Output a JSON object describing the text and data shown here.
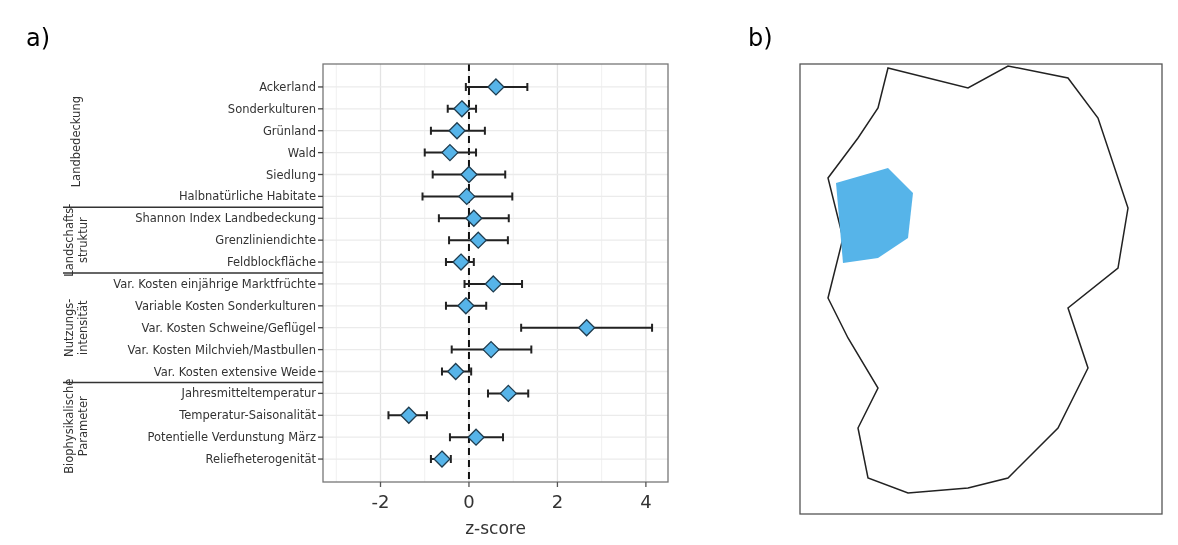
{
  "chart_data": {
    "type": "scatter",
    "orientation": "horizontal",
    "xlabel": "z-score",
    "categories": [
      "Ackerland",
      "Sonderkulturen",
      "Grünland",
      "Wald",
      "Siedlung",
      "Halbnatürliche Habitate",
      "Shannon Index Landbedeckung",
      "Grenzliniendichte",
      "Feldblockfläche",
      "Var. Kosten einjährige Marktfrüchte",
      "Variable Kosten Sonderkulturen",
      "Var. Kosten Schweine/Geflügel",
      "Var. Kosten Milchvieh/Mastbullen",
      "Var. Kosten extensive Weide",
      "Jahresmitteltemperatur",
      "Temperatur-Saisonalität",
      "Potentielle Verdunstung März",
      "Reliefheterogenität"
    ],
    "series": [
      {
        "color": "#56b4e9",
        "values": [
          0.61,
          -0.16,
          -0.27,
          -0.43,
          0.0,
          -0.05,
          0.11,
          0.21,
          -0.18,
          0.55,
          -0.07,
          2.66,
          0.5,
          -0.3,
          0.89,
          -1.36,
          0.16,
          -0.61
        ],
        "errors": [
          [
            -0.07,
            1.32
          ],
          [
            -0.48,
            0.16
          ],
          [
            -0.86,
            0.36
          ],
          [
            -1.0,
            0.16
          ],
          [
            -0.82,
            0.82
          ],
          [
            -1.05,
            0.98
          ],
          [
            -0.68,
            0.9
          ],
          [
            -0.45,
            0.88
          ],
          [
            -0.52,
            0.11
          ],
          [
            -0.1,
            1.2
          ],
          [
            -0.52,
            0.39
          ],
          [
            1.18,
            4.14
          ],
          [
            -0.39,
            1.41
          ],
          [
            -0.61,
            0.05
          ],
          [
            0.43,
            1.34
          ],
          [
            -1.82,
            -0.95
          ],
          [
            -0.43,
            0.77
          ],
          [
            -0.86,
            -0.41
          ]
        ]
      }
    ],
    "xlim": [
      -3.3,
      4.5
    ],
    "xticks": [
      -2,
      0,
      2,
      4
    ],
    "grid": true,
    "marker": "diamond",
    "ref_lines": [
      {
        "axis": "x",
        "value": 0,
        "line_style": "dashed"
      }
    ],
    "annotations": [
      "a)",
      "b)",
      "Landbedeckung",
      "Landschafts-\nstruktur",
      "Nutzungs-\nintensität",
      "Biophysikalische\nParameter"
    ]
  }
}
